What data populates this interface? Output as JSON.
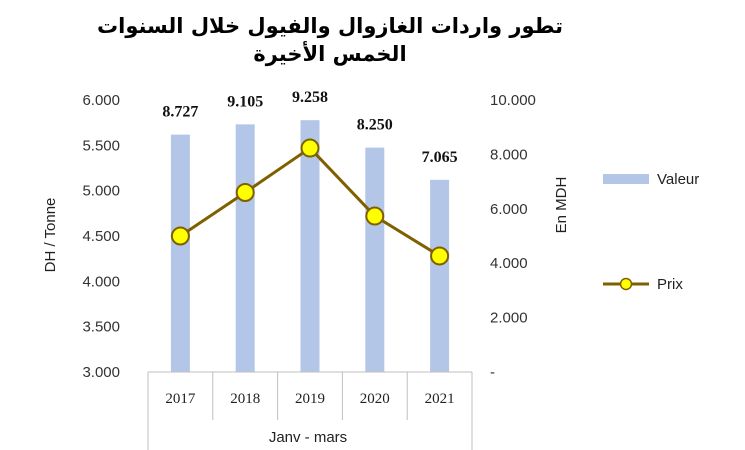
{
  "chart_data": {
    "type": "bar+line",
    "title_line1": "تطور واردات الغازوال والفيول خلال السنوات",
    "title_line2": "الخمس الأخيرة",
    "categories": [
      "2017",
      "2018",
      "2019",
      "2020",
      "2021"
    ],
    "x_group_label": "Janv - mars",
    "series": [
      {
        "name": "Valeur",
        "type": "bar",
        "axis": "right",
        "values": [
          8727,
          9105,
          9258,
          8250,
          7065
        ],
        "labels": [
          "8.727",
          "9.105",
          "9.258",
          "8.250",
          "7.065"
        ],
        "color": "#b4c6e7"
      },
      {
        "name": "Prix",
        "type": "line",
        "axis": "left",
        "values": [
          4500,
          4980,
          5470,
          4720,
          4280
        ],
        "line_color": "#7f6000",
        "marker_color": "#ffff00"
      }
    ],
    "y_left": {
      "label": "DH / Tonne",
      "min": 3000,
      "max": 6000,
      "ticks": [
        6000,
        5500,
        5000,
        4500,
        4000,
        3500,
        3000
      ],
      "tick_labels": [
        "6.000",
        "5.500",
        "5.000",
        "4.500",
        "4.000",
        "3.500",
        "3.000"
      ]
    },
    "y_right": {
      "label": "En MDH",
      "min": 0,
      "max": 10000,
      "ticks": [
        10000,
        8000,
        6000,
        4000,
        2000,
        0
      ],
      "tick_labels": [
        "10.000",
        "8.000",
        "6.000",
        "4.000",
        "2.000",
        "-"
      ]
    },
    "legend": {
      "position": "right",
      "items": [
        "Valeur",
        "Prix"
      ]
    },
    "grid": false
  }
}
